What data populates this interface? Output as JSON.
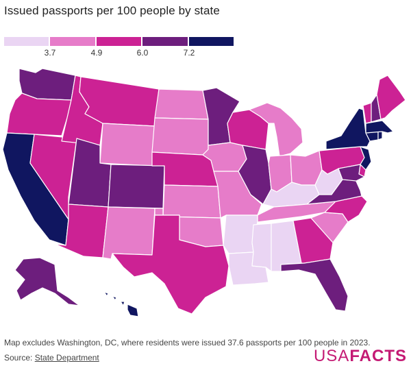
{
  "title": "Issued passports per 100 people by state",
  "legend": {
    "colors": [
      "#ead5f3",
      "#e67cc9",
      "#cc2294",
      "#6d1e7d",
      "#101660"
    ],
    "ticks": [
      "3.7",
      "4.9",
      "6.0",
      "7.2"
    ]
  },
  "tiers": {
    "t1": "#ead5f3",
    "t2": "#e67cc9",
    "t3": "#cc2294",
    "t4": "#6d1e7d",
    "t5": "#101660"
  },
  "note": "Map excludes Washington, DC, where residents were issued 37.6 passports per 100 people in 2023.",
  "source": {
    "label": "Source:",
    "link": "State Department"
  },
  "logo": {
    "part1": "USA",
    "part2": "FACTS"
  }
}
